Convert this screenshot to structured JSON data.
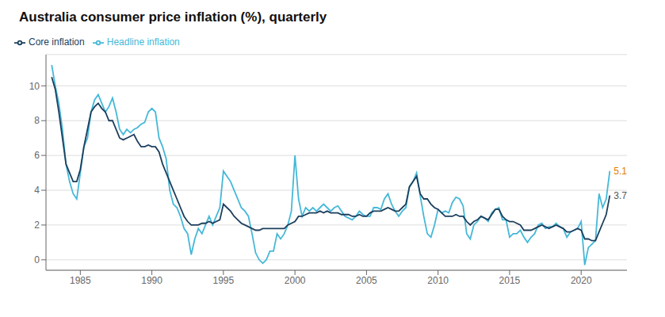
{
  "chart_data": {
    "type": "line",
    "title": "Australia consumer price inflation (%), quarterly",
    "x": [
      1983,
      1983.25,
      1983.5,
      1983.75,
      1984,
      1984.25,
      1984.5,
      1984.75,
      1985,
      1985.25,
      1985.5,
      1985.75,
      1986,
      1986.25,
      1986.5,
      1986.75,
      1987,
      1987.25,
      1987.5,
      1987.75,
      1988,
      1988.25,
      1988.5,
      1988.75,
      1989,
      1989.25,
      1989.5,
      1989.75,
      1990,
      1990.25,
      1990.5,
      1990.75,
      1991,
      1991.25,
      1991.5,
      1991.75,
      1992,
      1992.25,
      1992.5,
      1992.75,
      1993,
      1993.25,
      1993.5,
      1993.75,
      1994,
      1994.25,
      1994.5,
      1994.75,
      1995,
      1995.25,
      1995.5,
      1995.75,
      1996,
      1996.25,
      1996.5,
      1996.75,
      1997,
      1997.25,
      1997.5,
      1997.75,
      1998,
      1998.25,
      1998.5,
      1998.75,
      1999,
      1999.25,
      1999.5,
      1999.75,
      2000,
      2000.25,
      2000.5,
      2000.75,
      2001,
      2001.25,
      2001.5,
      2001.75,
      2002,
      2002.25,
      2002.5,
      2002.75,
      2003,
      2003.25,
      2003.5,
      2003.75,
      2004,
      2004.25,
      2004.5,
      2004.75,
      2005,
      2005.25,
      2005.5,
      2005.75,
      2006,
      2006.25,
      2006.5,
      2006.75,
      2007,
      2007.25,
      2007.5,
      2007.75,
      2008,
      2008.25,
      2008.5,
      2008.75,
      2009,
      2009.25,
      2009.5,
      2009.75,
      2010,
      2010.25,
      2010.5,
      2010.75,
      2011,
      2011.25,
      2011.5,
      2011.75,
      2012,
      2012.25,
      2012.5,
      2012.75,
      2013,
      2013.25,
      2013.5,
      2013.75,
      2014,
      2014.25,
      2014.5,
      2014.75,
      2015,
      2015.25,
      2015.5,
      2015.75,
      2016,
      2016.25,
      2016.5,
      2016.75,
      2017,
      2017.25,
      2017.5,
      2017.75,
      2018,
      2018.25,
      2018.5,
      2018.75,
      2019,
      2019.25,
      2019.5,
      2019.75,
      2020,
      2020.25,
      2020.5,
      2020.75,
      2021,
      2021.25,
      2021.5,
      2021.75,
      2022
    ],
    "series": [
      {
        "name": "Headline inflation",
        "color": "#45b8d8",
        "values": [
          11.2,
          10.0,
          9.0,
          7.5,
          5.5,
          4.5,
          3.8,
          3.5,
          5.0,
          6.5,
          7.0,
          8.5,
          9.2,
          9.5,
          9.0,
          8.5,
          8.8,
          9.3,
          8.5,
          7.5,
          7.2,
          7.5,
          7.3,
          7.5,
          7.6,
          7.8,
          7.9,
          8.5,
          8.7,
          8.5,
          7.0,
          6.5,
          5.8,
          4.0,
          3.2,
          3.0,
          2.5,
          1.8,
          1.5,
          0.3,
          1.2,
          1.8,
          1.5,
          2.0,
          2.5,
          2.0,
          2.5,
          3.0,
          5.1,
          4.8,
          4.5,
          4.0,
          3.5,
          3.0,
          2.8,
          2.5,
          1.5,
          0.4,
          0.0,
          -0.2,
          0.0,
          0.5,
          0.5,
          1.5,
          1.2,
          1.5,
          2.0,
          2.8,
          6.0,
          3.5,
          2.5,
          3.0,
          2.8,
          3.0,
          2.8,
          3.0,
          3.2,
          3.0,
          2.8,
          3.0,
          3.1,
          2.8,
          2.5,
          2.4,
          2.3,
          2.5,
          2.8,
          2.6,
          2.5,
          2.5,
          3.0,
          3.0,
          2.9,
          3.5,
          3.8,
          3.2,
          2.8,
          2.5,
          2.8,
          3.0,
          4.2,
          4.5,
          5.0,
          3.7,
          2.5,
          1.5,
          1.3,
          2.0,
          2.9,
          2.7,
          2.8,
          2.7,
          3.3,
          3.6,
          3.5,
          3.1,
          1.5,
          1.2,
          2.0,
          2.2,
          2.5,
          2.4,
          2.2,
          2.7,
          2.9,
          3.0,
          2.3,
          2.3,
          1.3,
          1.5,
          1.5,
          1.7,
          1.3,
          1.0,
          1.3,
          1.5,
          2.0,
          2.1,
          1.8,
          1.9,
          1.9,
          2.1,
          1.9,
          1.8,
          1.3,
          1.6,
          1.7,
          1.8,
          2.2,
          -0.3,
          0.7,
          0.9,
          1.1,
          3.8,
          3.0,
          3.5,
          5.1
        ]
      },
      {
        "name": "Core inflation",
        "color": "#1c3f5e",
        "values": [
          10.5,
          9.8,
          8.5,
          7.0,
          5.5,
          5.0,
          4.5,
          4.5,
          5.2,
          6.5,
          7.5,
          8.5,
          8.8,
          9.0,
          8.7,
          8.5,
          8.0,
          8.0,
          7.5,
          7.0,
          6.9,
          7.0,
          7.1,
          7.2,
          6.8,
          6.5,
          6.5,
          6.6,
          6.5,
          6.5,
          6.2,
          5.5,
          5.0,
          4.5,
          4.0,
          3.5,
          3.0,
          2.5,
          2.2,
          2.0,
          2.0,
          2.0,
          2.1,
          2.1,
          2.2,
          2.1,
          2.2,
          2.3,
          3.2,
          3.0,
          2.8,
          2.5,
          2.3,
          2.1,
          2.0,
          1.9,
          1.8,
          1.7,
          1.7,
          1.8,
          1.8,
          1.8,
          1.8,
          1.8,
          1.8,
          1.8,
          2.0,
          2.1,
          2.2,
          2.5,
          2.5,
          2.6,
          2.7,
          2.7,
          2.7,
          2.8,
          2.7,
          2.8,
          2.7,
          2.7,
          2.7,
          2.6,
          2.6,
          2.6,
          2.5,
          2.5,
          2.6,
          2.5,
          2.5,
          2.7,
          2.8,
          2.8,
          2.8,
          2.9,
          3.0,
          2.9,
          2.8,
          2.8,
          3.0,
          3.2,
          4.2,
          4.5,
          4.8,
          3.8,
          3.5,
          3.5,
          3.2,
          3.0,
          2.9,
          2.7,
          2.5,
          2.5,
          2.5,
          2.6,
          2.5,
          2.5,
          2.2,
          2.0,
          2.2,
          2.3,
          2.5,
          2.4,
          2.3,
          2.6,
          2.9,
          2.9,
          2.5,
          2.3,
          2.2,
          2.2,
          2.1,
          2.0,
          1.7,
          1.7,
          1.7,
          1.8,
          1.9,
          2.0,
          1.9,
          1.8,
          1.9,
          2.0,
          1.9,
          1.8,
          1.6,
          1.6,
          1.7,
          1.8,
          1.7,
          1.2,
          1.2,
          1.1,
          1.1,
          1.6,
          2.1,
          2.6,
          3.7
        ]
      }
    ],
    "xlim": [
      1982.6,
      2023.2
    ],
    "xticks": [
      1985,
      1990,
      1995,
      2000,
      2005,
      2010,
      2015,
      2020
    ],
    "ylim": [
      -0.6,
      11.8
    ],
    "yticks": [
      0,
      2,
      4,
      6,
      8,
      10
    ],
    "grid": "y",
    "legend": "top-left",
    "annotations": [
      {
        "text": "5.1",
        "x": 2022.0,
        "y": 5.1,
        "color": "#e07b00"
      },
      {
        "text": "3.7",
        "x": 2022.0,
        "y": 3.7,
        "color": "#555555"
      }
    ]
  }
}
